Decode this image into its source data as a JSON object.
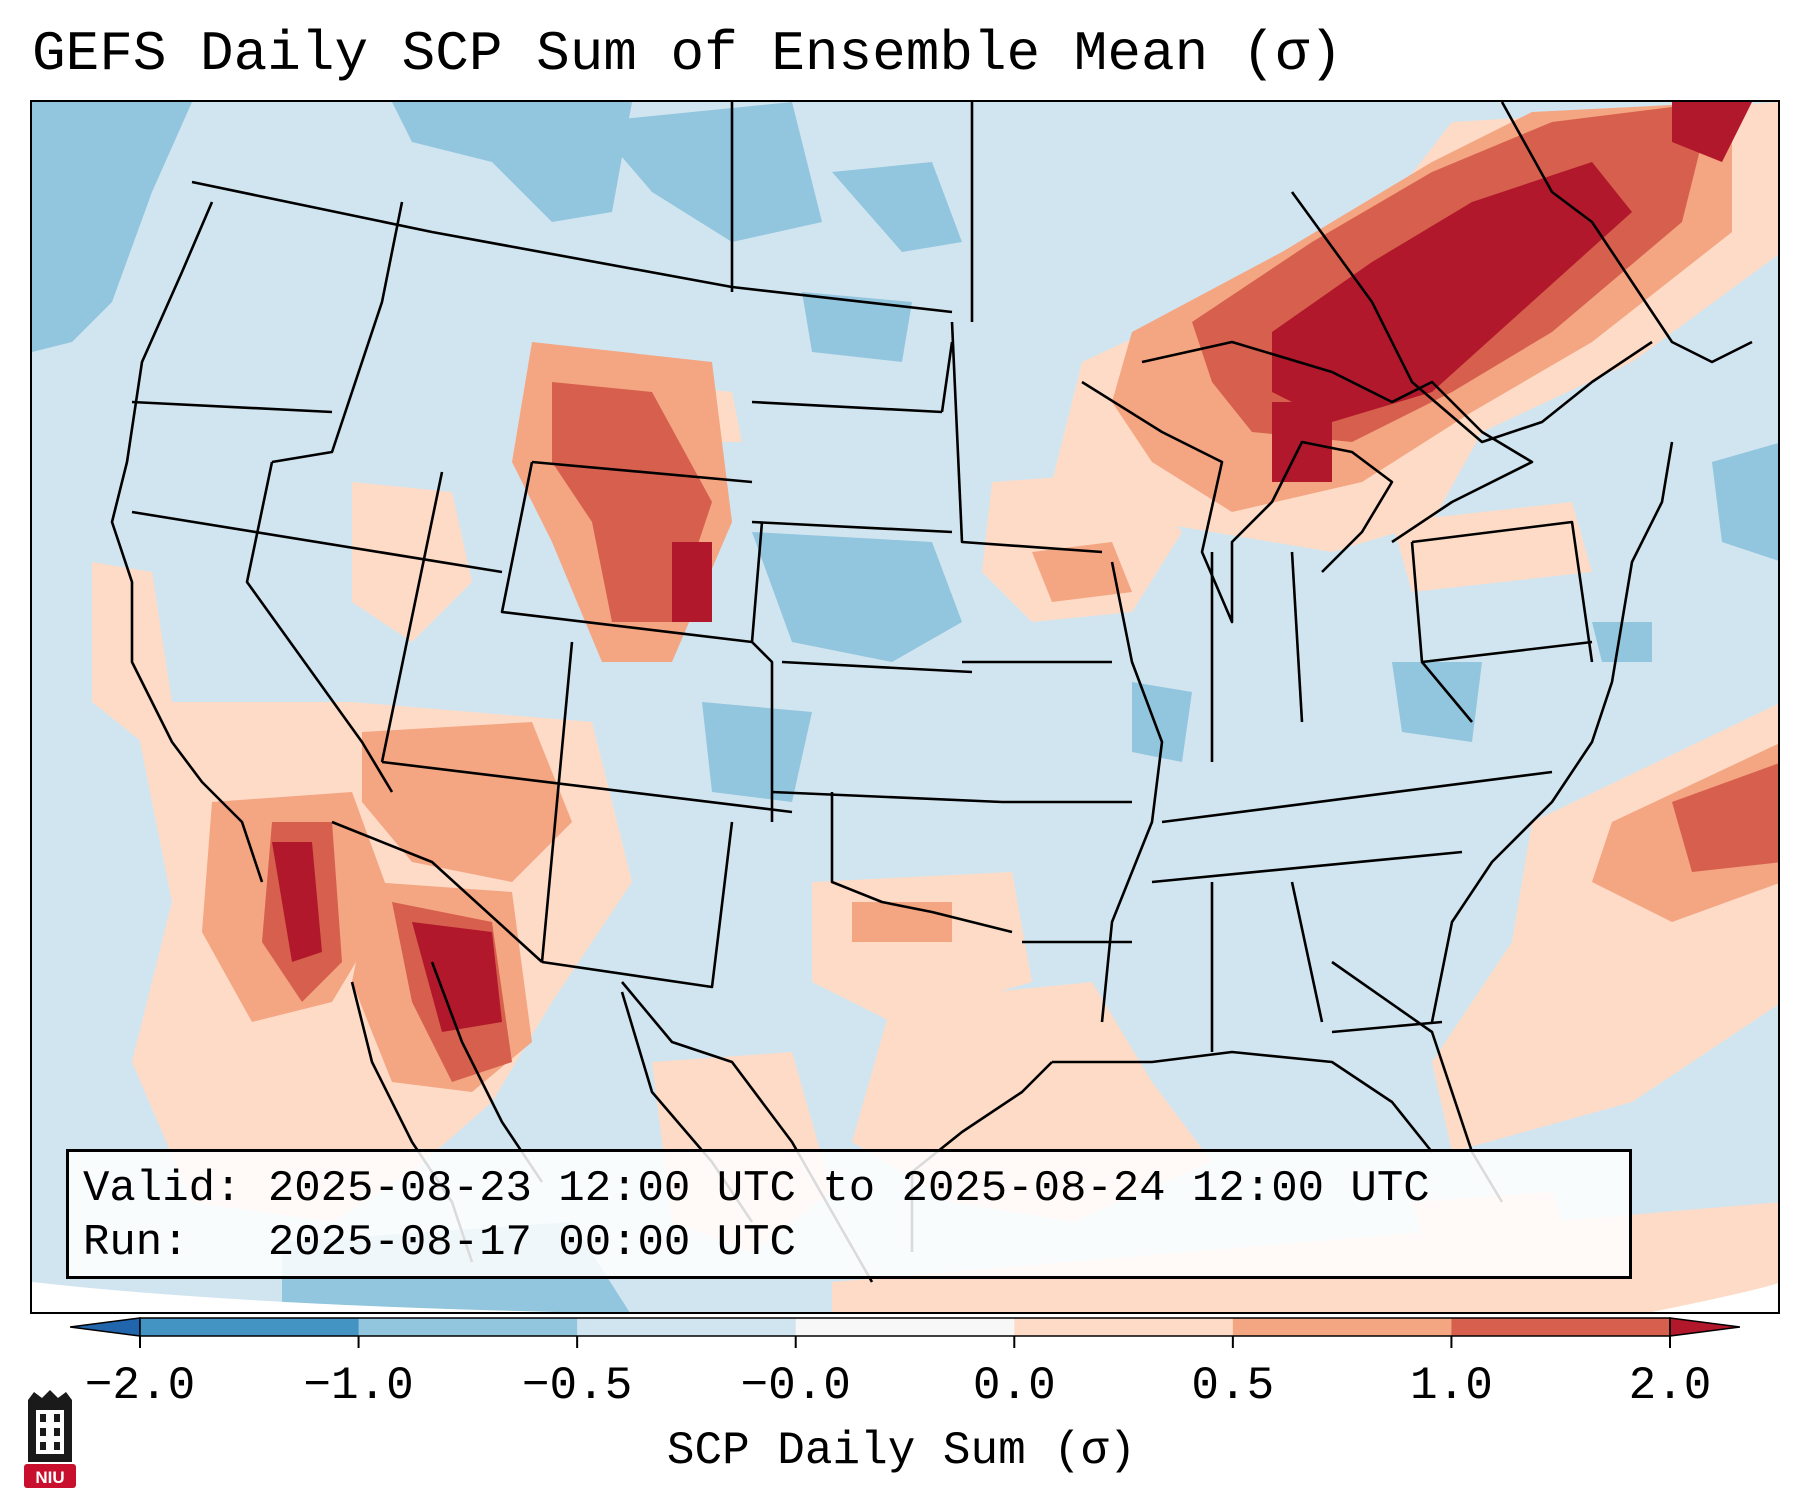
{
  "title": "GEFS Daily SCP Sum of Ensemble Mean (σ)",
  "info": {
    "valid_label": "Valid:",
    "valid_value": "2025-08-23 12:00 UTC to 2025-08-24 12:00 UTC",
    "run_label": "Run:",
    "run_value": "2025-08-17 00:00 UTC"
  },
  "colorbar": {
    "label": "SCP Daily Sum (σ)",
    "ticks": [
      "−2.0",
      "−1.0",
      "−0.5",
      "−0.0",
      "0.0",
      "0.5",
      "1.0",
      "2.0"
    ],
    "colors": [
      "#4393c3",
      "#92c5de",
      "#d1e5f0",
      "#f7f7f7",
      "#fddbc7",
      "#f4a582",
      "#d6604d",
      "#b2182b"
    ],
    "under_color": "#2166ac",
    "over_color": "#67001f"
  },
  "map": {
    "region": "Contiguous United States",
    "background_color": "#d1e5f0"
  },
  "logo": {
    "text": "NIU",
    "icon": "niu-tower-icon",
    "color": "#c8102e"
  }
}
